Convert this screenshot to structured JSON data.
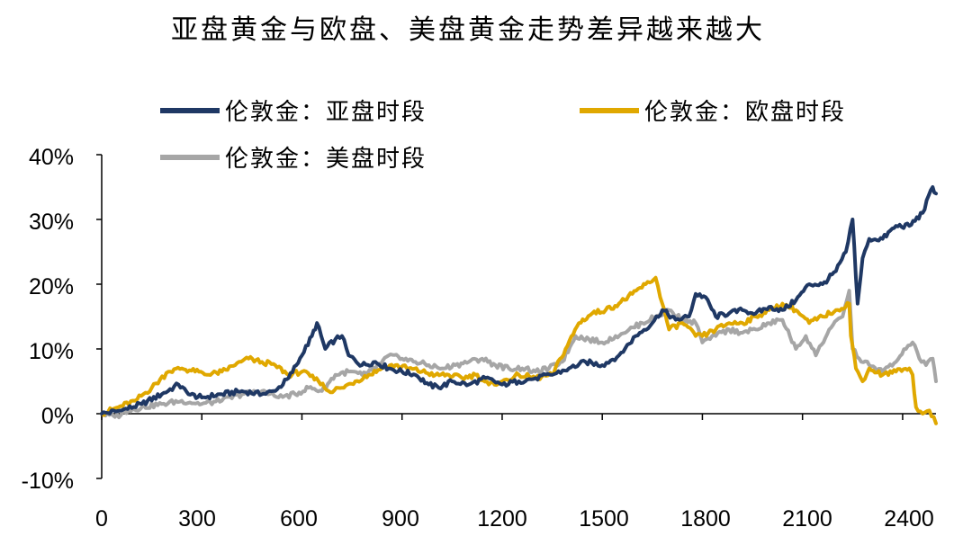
{
  "chart_data": {
    "type": "line",
    "title": "亚盘黄金与欧盘、美盘黄金走势差异越来越大",
    "xlabel": "",
    "ylabel": "",
    "xlim": [
      0,
      2500
    ],
    "ylim": [
      -0.1,
      0.4
    ],
    "x_ticks": [
      "0",
      "300",
      "600",
      "900",
      "1200",
      "1500",
      "1800",
      "2100",
      "2400"
    ],
    "x_tick_values": [
      0,
      300,
      600,
      900,
      1200,
      1500,
      1800,
      2100,
      2400
    ],
    "y_ticks": [
      "-10%",
      "0%",
      "10%",
      "20%",
      "30%",
      "40%"
    ],
    "y_tick_values": [
      -0.1,
      0,
      0.1,
      0.2,
      0.3,
      0.4
    ],
    "legend_position": "top-left",
    "series": [
      {
        "name": "伦敦金：亚盘时段",
        "color": "#1f3864",
        "points": [
          [
            0,
            0.0
          ],
          [
            60,
            0.005
          ],
          [
            120,
            0.015
          ],
          [
            180,
            0.03
          ],
          [
            230,
            0.045
          ],
          [
            260,
            0.03
          ],
          [
            300,
            0.025
          ],
          [
            360,
            0.03
          ],
          [
            420,
            0.035
          ],
          [
            480,
            0.03
          ],
          [
            520,
            0.035
          ],
          [
            560,
            0.055
          ],
          [
            600,
            0.09
          ],
          [
            630,
            0.12
          ],
          [
            645,
            0.14
          ],
          [
            670,
            0.1
          ],
          [
            700,
            0.115
          ],
          [
            720,
            0.12
          ],
          [
            740,
            0.09
          ],
          [
            780,
            0.075
          ],
          [
            820,
            0.08
          ],
          [
            860,
            0.07
          ],
          [
            900,
            0.065
          ],
          [
            940,
            0.06
          ],
          [
            980,
            0.045
          ],
          [
            1010,
            0.04
          ],
          [
            1050,
            0.05
          ],
          [
            1100,
            0.045
          ],
          [
            1150,
            0.055
          ],
          [
            1200,
            0.045
          ],
          [
            1250,
            0.05
          ],
          [
            1300,
            0.055
          ],
          [
            1350,
            0.06
          ],
          [
            1400,
            0.07
          ],
          [
            1450,
            0.08
          ],
          [
            1500,
            0.075
          ],
          [
            1550,
            0.09
          ],
          [
            1600,
            0.12
          ],
          [
            1650,
            0.14
          ],
          [
            1680,
            0.16
          ],
          [
            1720,
            0.145
          ],
          [
            1760,
            0.15
          ],
          [
            1780,
            0.185
          ],
          [
            1810,
            0.18
          ],
          [
            1840,
            0.15
          ],
          [
            1880,
            0.155
          ],
          [
            1920,
            0.16
          ],
          [
            1960,
            0.155
          ],
          [
            2000,
            0.165
          ],
          [
            2040,
            0.16
          ],
          [
            2080,
            0.175
          ],
          [
            2120,
            0.2
          ],
          [
            2160,
            0.2
          ],
          [
            2200,
            0.22
          ],
          [
            2230,
            0.25
          ],
          [
            2250,
            0.3
          ],
          [
            2265,
            0.17
          ],
          [
            2280,
            0.24
          ],
          [
            2300,
            0.27
          ],
          [
            2340,
            0.27
          ],
          [
            2380,
            0.29
          ],
          [
            2420,
            0.29
          ],
          [
            2460,
            0.31
          ],
          [
            2490,
            0.35
          ],
          [
            2500,
            0.34
          ]
        ]
      },
      {
        "name": "伦敦金：欧盘时段",
        "color": "#e0a800",
        "points": [
          [
            0,
            0.0
          ],
          [
            50,
            0.01
          ],
          [
            100,
            0.02
          ],
          [
            150,
            0.04
          ],
          [
            200,
            0.065
          ],
          [
            240,
            0.07
          ],
          [
            280,
            0.065
          ],
          [
            320,
            0.06
          ],
          [
            360,
            0.065
          ],
          [
            400,
            0.075
          ],
          [
            440,
            0.085
          ],
          [
            480,
            0.08
          ],
          [
            520,
            0.075
          ],
          [
            560,
            0.06
          ],
          [
            600,
            0.065
          ],
          [
            650,
            0.05
          ],
          [
            680,
            0.035
          ],
          [
            720,
            0.04
          ],
          [
            760,
            0.05
          ],
          [
            800,
            0.06
          ],
          [
            840,
            0.07
          ],
          [
            880,
            0.075
          ],
          [
            920,
            0.07
          ],
          [
            960,
            0.065
          ],
          [
            1000,
            0.06
          ],
          [
            1040,
            0.06
          ],
          [
            1080,
            0.055
          ],
          [
            1120,
            0.06
          ],
          [
            1160,
            0.045
          ],
          [
            1200,
            0.05
          ],
          [
            1250,
            0.06
          ],
          [
            1300,
            0.055
          ],
          [
            1350,
            0.06
          ],
          [
            1390,
            0.1
          ],
          [
            1430,
            0.14
          ],
          [
            1470,
            0.155
          ],
          [
            1510,
            0.16
          ],
          [
            1550,
            0.17
          ],
          [
            1590,
            0.185
          ],
          [
            1630,
            0.2
          ],
          [
            1660,
            0.21
          ],
          [
            1680,
            0.17
          ],
          [
            1700,
            0.13
          ],
          [
            1740,
            0.14
          ],
          [
            1780,
            0.12
          ],
          [
            1800,
            0.12
          ],
          [
            1840,
            0.13
          ],
          [
            1880,
            0.14
          ],
          [
            1920,
            0.14
          ],
          [
            1960,
            0.15
          ],
          [
            2000,
            0.16
          ],
          [
            2040,
            0.17
          ],
          [
            2080,
            0.16
          ],
          [
            2120,
            0.14
          ],
          [
            2160,
            0.15
          ],
          [
            2200,
            0.16
          ],
          [
            2240,
            0.17
          ],
          [
            2245,
            0.12
          ],
          [
            2260,
            0.07
          ],
          [
            2280,
            0.05
          ],
          [
            2300,
            0.07
          ],
          [
            2340,
            0.06
          ],
          [
            2380,
            0.065
          ],
          [
            2420,
            0.07
          ],
          [
            2430,
            0.06
          ],
          [
            2440,
            0.01
          ],
          [
            2460,
            0.0
          ],
          [
            2480,
            0.005
          ],
          [
            2500,
            -0.015
          ]
        ]
      },
      {
        "name": "伦敦金：美盘时段",
        "color": "#a6a6a6",
        "points": [
          [
            0,
            0.0
          ],
          [
            40,
            -0.005
          ],
          [
            80,
            0.005
          ],
          [
            120,
            0.01
          ],
          [
            180,
            0.015
          ],
          [
            240,
            0.02
          ],
          [
            300,
            0.015
          ],
          [
            360,
            0.02
          ],
          [
            420,
            0.03
          ],
          [
            480,
            0.035
          ],
          [
            530,
            0.025
          ],
          [
            580,
            0.03
          ],
          [
            620,
            0.04
          ],
          [
            660,
            0.035
          ],
          [
            700,
            0.06
          ],
          [
            740,
            0.065
          ],
          [
            780,
            0.06
          ],
          [
            820,
            0.07
          ],
          [
            860,
            0.09
          ],
          [
            900,
            0.085
          ],
          [
            940,
            0.08
          ],
          [
            980,
            0.075
          ],
          [
            1020,
            0.07
          ],
          [
            1060,
            0.075
          ],
          [
            1100,
            0.08
          ],
          [
            1140,
            0.085
          ],
          [
            1180,
            0.075
          ],
          [
            1220,
            0.07
          ],
          [
            1260,
            0.07
          ],
          [
            1300,
            0.065
          ],
          [
            1340,
            0.07
          ],
          [
            1380,
            0.08
          ],
          [
            1420,
            0.12
          ],
          [
            1460,
            0.115
          ],
          [
            1500,
            0.11
          ],
          [
            1540,
            0.12
          ],
          [
            1580,
            0.13
          ],
          [
            1620,
            0.14
          ],
          [
            1660,
            0.15
          ],
          [
            1700,
            0.16
          ],
          [
            1740,
            0.145
          ],
          [
            1780,
            0.14
          ],
          [
            1800,
            0.11
          ],
          [
            1840,
            0.12
          ],
          [
            1880,
            0.13
          ],
          [
            1920,
            0.125
          ],
          [
            1960,
            0.13
          ],
          [
            2000,
            0.14
          ],
          [
            2040,
            0.145
          ],
          [
            2080,
            0.1
          ],
          [
            2110,
            0.12
          ],
          [
            2140,
            0.09
          ],
          [
            2180,
            0.13
          ],
          [
            2220,
            0.15
          ],
          [
            2240,
            0.19
          ],
          [
            2250,
            0.1
          ],
          [
            2270,
            0.085
          ],
          [
            2300,
            0.075
          ],
          [
            2340,
            0.065
          ],
          [
            2380,
            0.08
          ],
          [
            2410,
            0.1
          ],
          [
            2430,
            0.11
          ],
          [
            2450,
            0.085
          ],
          [
            2470,
            0.075
          ],
          [
            2490,
            0.085
          ],
          [
            2500,
            0.05
          ]
        ]
      }
    ]
  }
}
